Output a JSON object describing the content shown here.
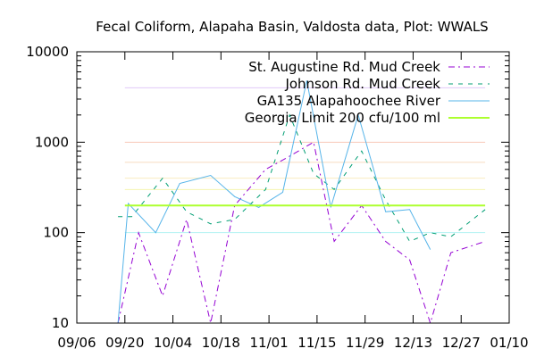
{
  "chart_data": {
    "type": "line",
    "title": "Fecal Coliform, Alapaha Basin, Valdosta data, Plot: WWALS",
    "xlabel": "",
    "ylabel": "",
    "x_range": [
      "2014-09-06",
      "2015-01-10"
    ],
    "x_tick_labels": [
      "09/06",
      "09/20",
      "10/04",
      "10/18",
      "11/01",
      "11/15",
      "11/29",
      "12/13",
      "12/27",
      "01/10"
    ],
    "x_tick_dates": [
      "2014-09-06",
      "2014-09-20",
      "2014-10-04",
      "2014-10-18",
      "2014-11-01",
      "2014-11-15",
      "2014-11-29",
      "2014-12-13",
      "2014-12-27",
      "2015-01-10"
    ],
    "y_scale": "log",
    "ylim": [
      10,
      10000
    ],
    "y_tick_labels": [
      "10",
      "100",
      "1000",
      "10000"
    ],
    "y_ticks": [
      10,
      100,
      1000,
      10000
    ],
    "legend_position": "top-right",
    "grid": false,
    "background_lines": [
      {
        "y": 100,
        "color": "#b3f2f2"
      },
      {
        "y": 300,
        "color": "#f5f5b0"
      },
      {
        "y": 400,
        "color": "#f8ecc0"
      },
      {
        "y": 600,
        "color": "#f8dcc0"
      },
      {
        "y": 1000,
        "color": "#f8c8b8"
      },
      {
        "y": 4000,
        "color": "#e0c8f8"
      }
    ],
    "series": [
      {
        "name": "St. Augustine Rd. Mud Creek",
        "color": "#9400d3",
        "dash": "dashdot",
        "points": [
          [
            "2014-09-18",
            10
          ],
          [
            "2014-09-24",
            100
          ],
          [
            "2014-10-01",
            20
          ],
          [
            "2014-10-08",
            140
          ],
          [
            "2014-10-15",
            10
          ],
          [
            "2014-10-22",
            200
          ],
          [
            "2014-10-31",
            500
          ],
          [
            "2014-11-07",
            700
          ],
          [
            "2014-11-14",
            1000
          ],
          [
            "2014-11-20",
            80
          ],
          [
            "2014-11-28",
            200
          ],
          [
            "2014-12-05",
            80
          ],
          [
            "2014-12-12",
            50
          ],
          [
            "2014-12-18",
            8
          ],
          [
            "2014-12-24",
            60
          ],
          [
            "2015-01-03",
            80
          ]
        ]
      },
      {
        "name": "Johnson Rd. Mud Creek",
        "color": "#009e73",
        "dash": "dash",
        "points": [
          [
            "2014-09-18",
            150
          ],
          [
            "2014-09-22",
            150
          ],
          [
            "2014-10-01",
            400
          ],
          [
            "2014-10-08",
            170
          ],
          [
            "2014-10-15",
            125
          ],
          [
            "2014-10-22",
            140
          ],
          [
            "2014-10-31",
            300
          ],
          [
            "2014-11-07",
            2000
          ],
          [
            "2014-11-14",
            450
          ],
          [
            "2014-11-20",
            300
          ],
          [
            "2014-11-28",
            800
          ],
          [
            "2014-12-05",
            230
          ],
          [
            "2014-12-12",
            80
          ],
          [
            "2014-12-18",
            100
          ],
          [
            "2014-12-24",
            90
          ],
          [
            "2015-01-03",
            180
          ]
        ]
      },
      {
        "name": "GA135 Alapahoochee River",
        "color": "#56b4e9",
        "dash": "solid",
        "points": [
          [
            "2014-09-18",
            10
          ],
          [
            "2014-09-21",
            210
          ],
          [
            "2014-09-29",
            100
          ],
          [
            "2014-10-06",
            350
          ],
          [
            "2014-10-15",
            430
          ],
          [
            "2014-10-22",
            250
          ],
          [
            "2014-10-29",
            190
          ],
          [
            "2014-11-05",
            280
          ],
          [
            "2014-11-12",
            4800
          ],
          [
            "2014-11-19",
            190
          ],
          [
            "2014-11-27",
            2000
          ],
          [
            "2014-12-05",
            170
          ],
          [
            "2014-12-12",
            180
          ],
          [
            "2014-12-18",
            65
          ]
        ]
      },
      {
        "name": "Georgia Limit 200 cfu/100 ml",
        "color": "#adff2f",
        "dash": "solid",
        "points": [
          [
            "2014-09-20",
            200
          ],
          [
            "2015-01-03",
            200
          ]
        ]
      }
    ]
  }
}
